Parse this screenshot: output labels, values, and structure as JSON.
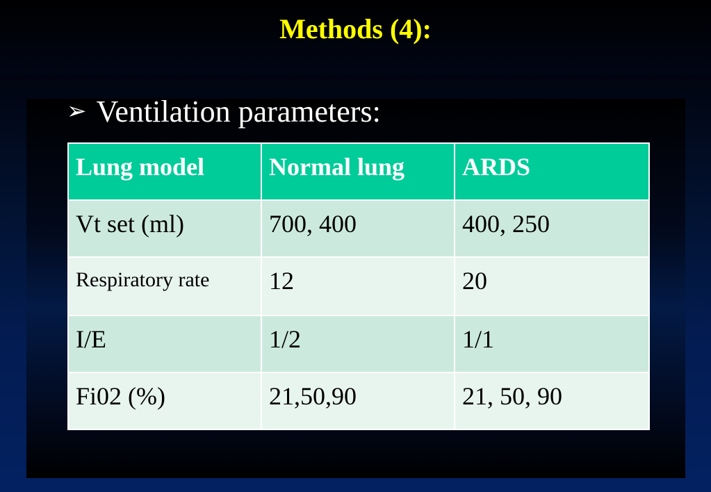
{
  "slide": {
    "title": "Methods (4):",
    "bullet_icon": "arrow-bullet-icon",
    "bullet": "Ventilation parameters:",
    "colors": {
      "title": "#ffff00",
      "header_bg": "#00cc99",
      "row_odd_bg": "#cce9dd",
      "row_even_bg": "#e8f5ef"
    }
  },
  "table": {
    "headers": [
      "Lung  model",
      "Normal lung",
      "ARDS"
    ],
    "rows": [
      [
        "Vt set (ml)",
        "700, 400",
        "400, 250"
      ],
      [
        "Respiratory rate",
        "12",
        "20"
      ],
      [
        "I/E",
        "1/2",
        "1/1"
      ],
      [
        "Fi02 (%)",
        "21,50,90",
        "21, 50, 90"
      ]
    ]
  }
}
